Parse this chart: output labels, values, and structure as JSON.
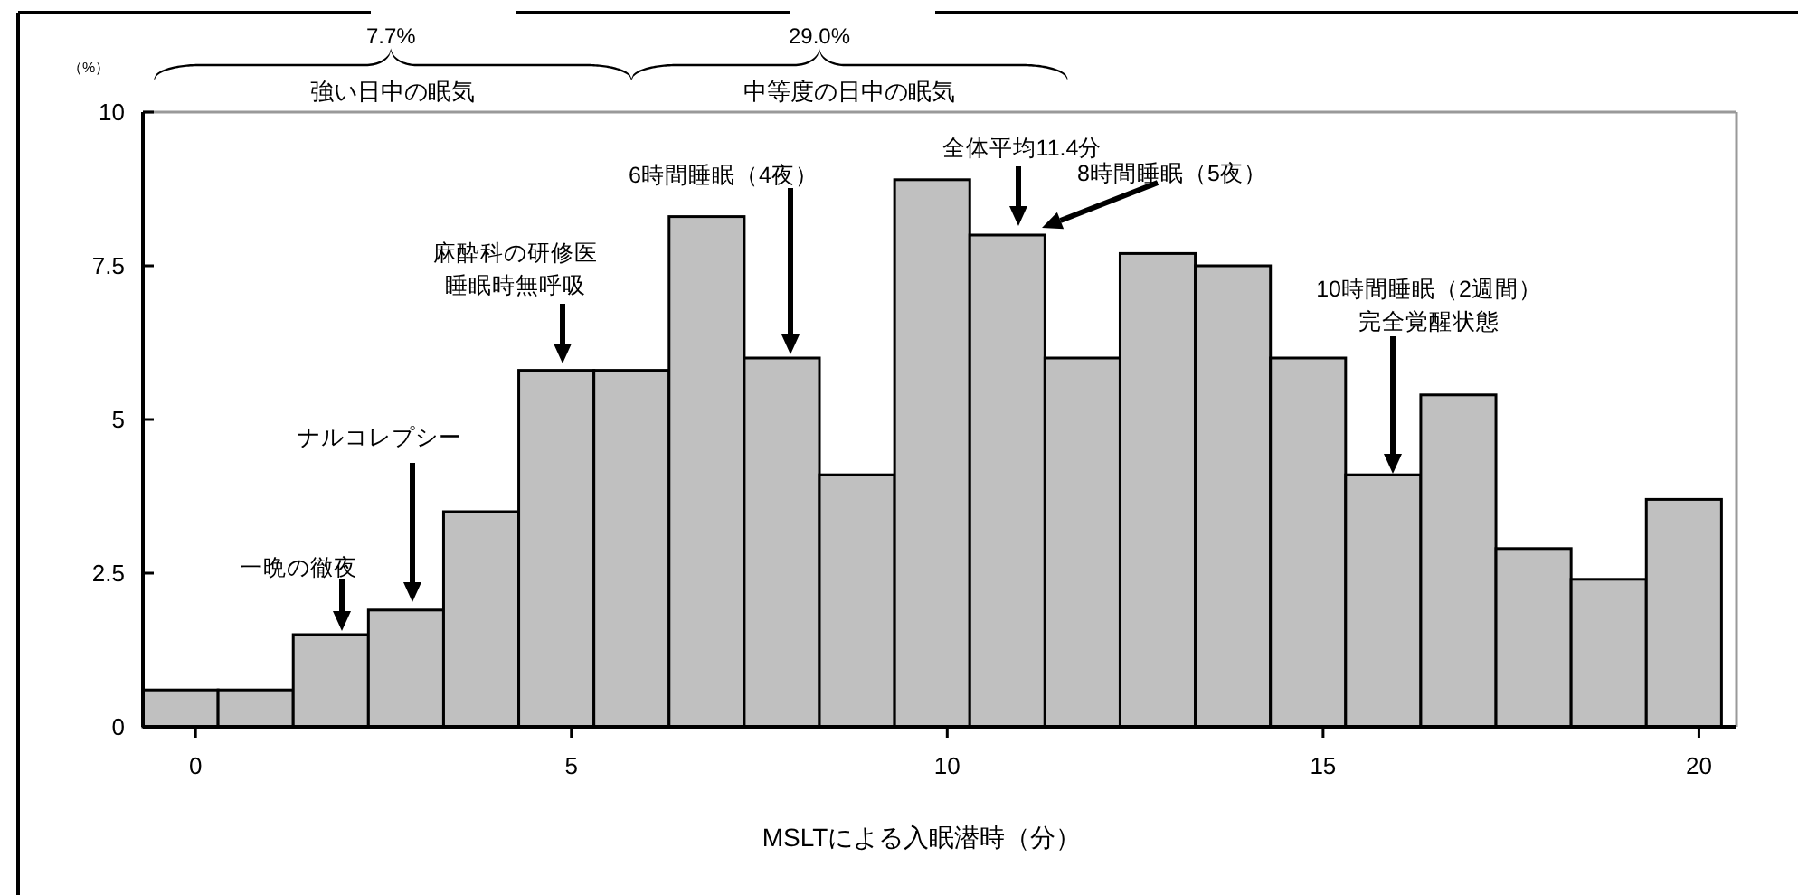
{
  "chart_data": {
    "type": "histogram",
    "xlabel": "MSLTによる入眠潜時（分）",
    "ylabel": "（%）",
    "bins": [
      -0.7,
      0.3,
      1.3,
      2.3,
      3.3,
      4.3,
      5.3,
      6.3,
      7.3,
      8.3,
      9.3,
      10.3,
      11.3,
      12.3,
      13.3,
      14.3,
      15.3,
      16.3,
      17.3,
      18.3,
      19.3,
      20.3
    ],
    "values": [
      0.6,
      0.6,
      1.5,
      1.9,
      3.5,
      5.8,
      5.8,
      8.3,
      6.0,
      4.1,
      8.9,
      8.0,
      6.0,
      7.7,
      7.5,
      6.0,
      4.1,
      5.4,
      2.9,
      2.4,
      3.7
    ],
    "color": "#c0c0c0",
    "xlim": [
      -0.7,
      20.5
    ],
    "xticks": [
      0,
      5,
      10,
      15,
      20
    ],
    "ylim": [
      0,
      10
    ],
    "yticks": [
      0,
      {
        "value": 2.5,
        "label": "2.5"
      },
      5,
      {
        "value": 7.5,
        "label": "7.5"
      },
      10
    ],
    "grid": false,
    "annotations": [
      "7.7%",
      "強い日中の眠気",
      "29.0%",
      "中等度の日中の眠気",
      "一晩の徹夜",
      "ナルコレプシー",
      "麻酔科の研修医",
      "睡眠時無呼吸",
      "6時間睡眠（4夜）",
      "全体平均11.4分",
      "8時間睡眠（5夜）",
      "10時間睡眠（2週間）",
      "完全覚醒状態"
    ]
  }
}
